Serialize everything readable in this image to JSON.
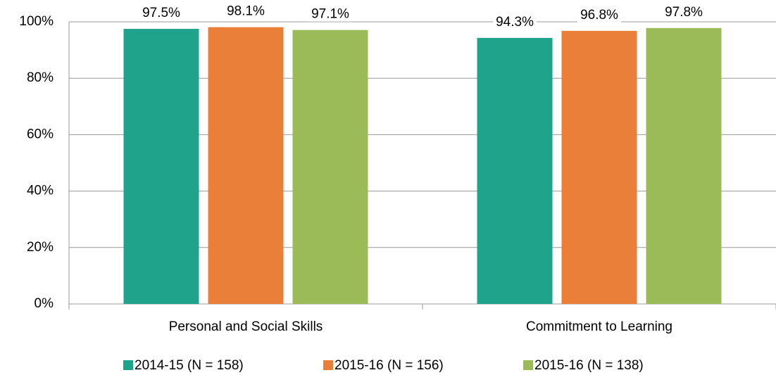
{
  "chart_data": {
    "type": "bar",
    "categories": [
      "Personal and Social Skills",
      "Commitment to Learning"
    ],
    "series": [
      {
        "name": "2014-15 (N = 158)",
        "color": "#1fa38a",
        "values": [
          97.5,
          94.3
        ],
        "value_labels": [
          "97.5%",
          "94.3%"
        ]
      },
      {
        "name": "2015-16 (N = 156)",
        "color": "#ea7f3a",
        "values": [
          98.1,
          96.8
        ],
        "value_labels": [
          "98.1%",
          "96.8%"
        ]
      },
      {
        "name": "2015-16 (N = 138)",
        "color": "#9bbb59",
        "values": [
          97.1,
          97.8
        ],
        "value_labels": [
          "97.1%",
          "97.8%"
        ]
      }
    ],
    "ylim": [
      0,
      100
    ],
    "yticks": [
      {
        "value": 0,
        "label": "0%"
      },
      {
        "value": 20,
        "label": "20%"
      },
      {
        "value": 40,
        "label": "40%"
      },
      {
        "value": 60,
        "label": "60%"
      },
      {
        "value": 80,
        "label": "80%"
      },
      {
        "value": 100,
        "label": "100%"
      }
    ],
    "grid": true,
    "legend": "bottom"
  }
}
